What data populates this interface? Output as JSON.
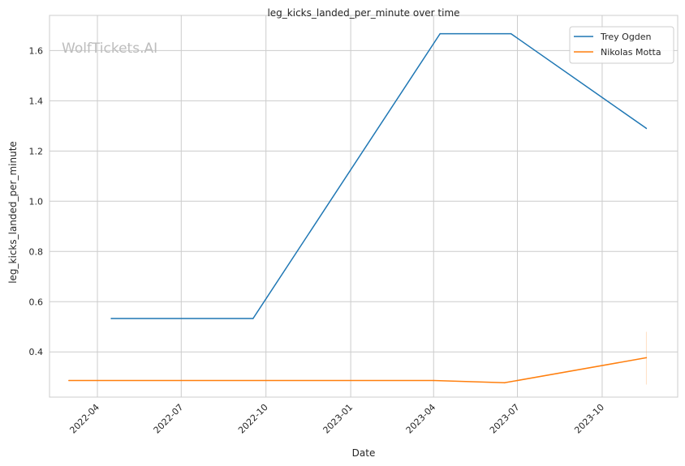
{
  "chart_data": {
    "type": "line",
    "title": "leg_kicks_landed_per_minute over time",
    "xlabel": "Date",
    "ylabel": "leg_kicks_landed_per_minute",
    "watermark": "WolfTickets.AI",
    "x_ticks": [
      "2022-04",
      "2022-07",
      "2022-10",
      "2023-01",
      "2023-04",
      "2023-07",
      "2023-10"
    ],
    "y_ticks": [
      0.4,
      0.6,
      0.8,
      1.0,
      1.2,
      1.4,
      1.6
    ],
    "y_tick_labels": [
      "0.4",
      "0.6",
      "0.8",
      "1.0",
      "1.2",
      "1.4",
      "1.6"
    ],
    "xlim": [
      "2022-02-08",
      "2023-12-22"
    ],
    "ylim": [
      0.22,
      1.74
    ],
    "grid": true,
    "legend_position": "top-right",
    "series": [
      {
        "name": "Trey Ogden",
        "color": "#1f77b4",
        "points": [
          {
            "x": "2022-04-16",
            "y": 0.533
          },
          {
            "x": "2022-09-17",
            "y": 0.533
          },
          {
            "x": "2023-04-08",
            "y": 1.667
          },
          {
            "x": "2023-06-24",
            "y": 1.667
          },
          {
            "x": "2023-11-18",
            "y": 1.29
          }
        ]
      },
      {
        "name": "Nikolas Motta",
        "color": "#ff7f0e",
        "points": [
          {
            "x": "2022-03-01",
            "y": 0.286
          },
          {
            "x": "2023-04-01",
            "y": 0.286
          },
          {
            "x": "2023-06-17",
            "y": 0.277
          },
          {
            "x": "2023-11-18",
            "y": 0.377
          }
        ],
        "error_band": {
          "x": "2023-11-18",
          "low": 0.27,
          "high": 0.48
        }
      }
    ]
  }
}
